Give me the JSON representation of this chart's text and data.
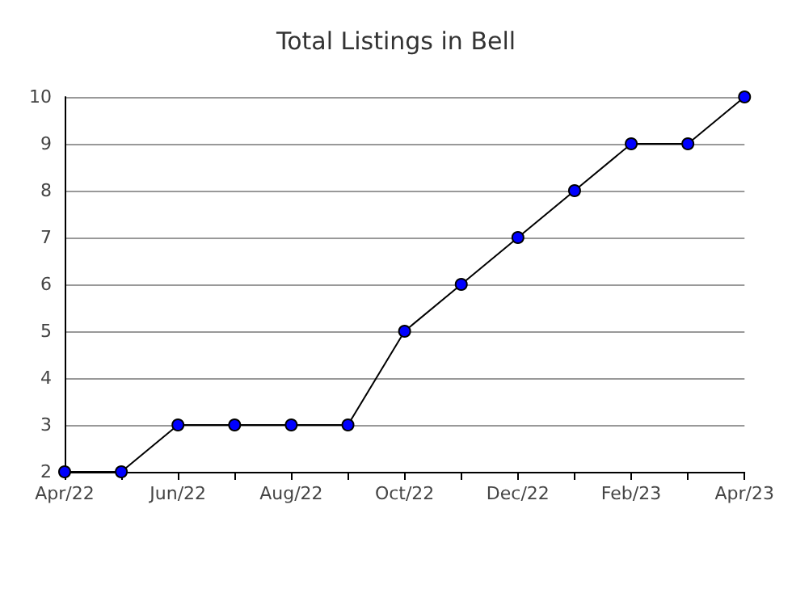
{
  "chart_data": {
    "type": "line",
    "title": "Total Listings in Bell",
    "categories": [
      "Apr/22",
      null,
      "Jun/22",
      null,
      "Aug/22",
      null,
      "Oct/22",
      null,
      "Dec/22",
      null,
      "Feb/23",
      null,
      "Apr/23"
    ],
    "series": [
      {
        "color": "#0000ff",
        "values": [
          2,
          2,
          3,
          3,
          3,
          3,
          5,
          6,
          7,
          8,
          9,
          9,
          10
        ]
      }
    ],
    "ylim": [
      2,
      10
    ],
    "yticks": [
      2,
      3,
      4,
      5,
      6,
      7,
      8,
      9,
      10
    ],
    "grid": "y",
    "marker": "circle",
    "line_style": "solid"
  }
}
